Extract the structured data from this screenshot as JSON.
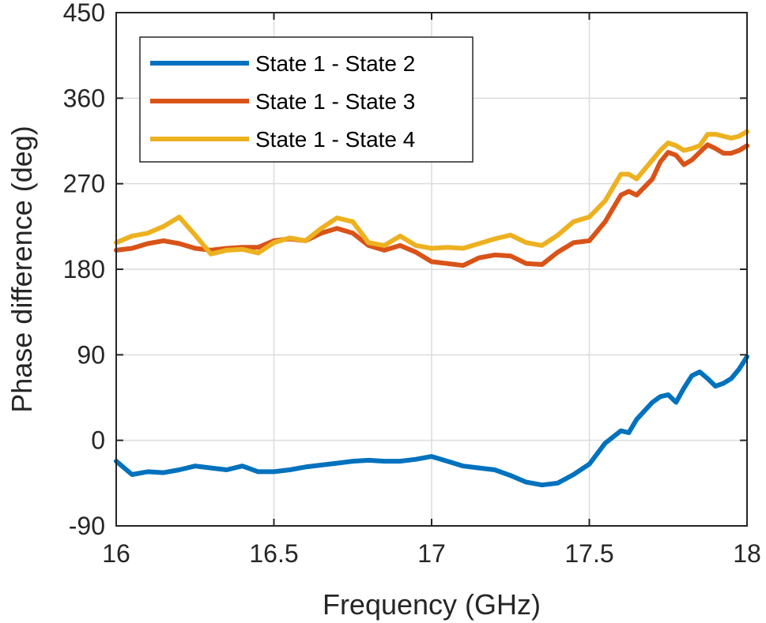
{
  "chart_data": {
    "type": "line",
    "title": "",
    "xlabel": "Frequency (GHz)",
    "ylabel": "Phase difference (deg)",
    "xlim": [
      16,
      18
    ],
    "ylim": [
      -90,
      450
    ],
    "xticks": [
      16,
      16.5,
      17,
      17.5,
      18
    ],
    "xtick_labels": [
      "16",
      "16.5",
      "17",
      "17.5",
      "18"
    ],
    "yticks": [
      -90,
      0,
      90,
      180,
      270,
      360,
      450
    ],
    "ytick_labels": [
      "-90",
      "0",
      "90",
      "180",
      "270",
      "360",
      "450"
    ],
    "grid": true,
    "legend_position": "top-left",
    "x": [
      16.0,
      16.05,
      16.1,
      16.15,
      16.2,
      16.25,
      16.3,
      16.35,
      16.4,
      16.45,
      16.5,
      16.55,
      16.6,
      16.65,
      16.7,
      16.75,
      16.8,
      16.85,
      16.9,
      16.95,
      17.0,
      17.05,
      17.1,
      17.15,
      17.2,
      17.25,
      17.3,
      17.35,
      17.4,
      17.45,
      17.5,
      17.55,
      17.6,
      17.625,
      17.65,
      17.7,
      17.725,
      17.75,
      17.775,
      17.8,
      17.825,
      17.85,
      17.875,
      17.9,
      17.925,
      17.95,
      17.975,
      18.0
    ],
    "series": [
      {
        "name": "State 1 - State 2",
        "color": "#0072BD",
        "values": [
          -22,
          -36,
          -33,
          -34,
          -31,
          -27,
          -29,
          -31,
          -27,
          -33,
          -33,
          -31,
          -28,
          -26,
          -24,
          -22,
          -21,
          -22,
          -22,
          -20,
          -17,
          -22,
          -27,
          -29,
          -31,
          -37,
          -44,
          -47,
          -45,
          -36,
          -25,
          -3,
          10,
          8,
          22,
          40,
          46,
          48,
          40,
          55,
          68,
          72,
          65,
          57,
          60,
          65,
          75,
          88
        ]
      },
      {
        "name": "State 1 - State 3",
        "color": "#D95319",
        "values": [
          200,
          202,
          207,
          210,
          207,
          202,
          200,
          202,
          203,
          203,
          210,
          212,
          210,
          218,
          223,
          218,
          205,
          200,
          205,
          198,
          188,
          186,
          184,
          192,
          195,
          194,
          186,
          185,
          198,
          208,
          210,
          230,
          258,
          262,
          258,
          275,
          293,
          303,
          300,
          290,
          295,
          303,
          311,
          307,
          302,
          302,
          305,
          310
        ]
      },
      {
        "name": "State 1 - State 4",
        "color": "#EDB120",
        "values": [
          208,
          215,
          218,
          225,
          235,
          216,
          196,
          200,
          201,
          197,
          208,
          213,
          210,
          223,
          234,
          230,
          208,
          205,
          215,
          205,
          202,
          203,
          202,
          207,
          212,
          216,
          208,
          205,
          216,
          230,
          235,
          252,
          280,
          280,
          275,
          295,
          305,
          313,
          310,
          305,
          307,
          310,
          322,
          322,
          320,
          318,
          320,
          325
        ]
      }
    ]
  }
}
